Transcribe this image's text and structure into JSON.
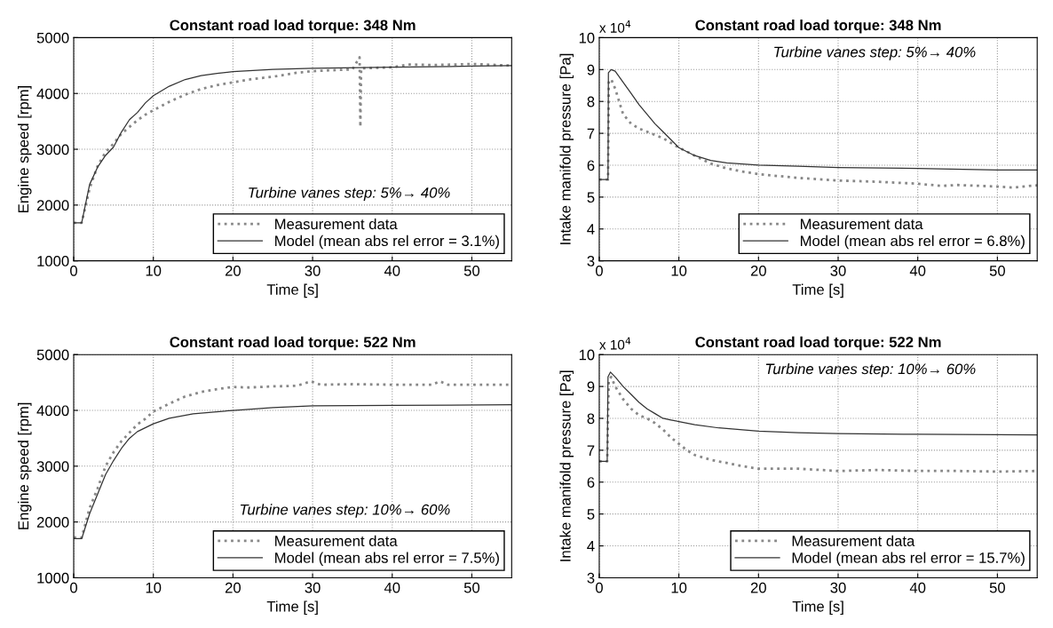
{
  "chart_data": [
    {
      "type": "line",
      "title": "Constant road load torque: 348 Nm",
      "xlabel": "Time [s]",
      "ylabel": "Engine speed [rpm]",
      "xlim": [
        0,
        55
      ],
      "xticks": [
        0,
        10,
        20,
        30,
        40,
        50
      ],
      "ylim": [
        1000,
        5000
      ],
      "yticks": [
        1000,
        2000,
        3000,
        4000,
        5000
      ],
      "grid": true,
      "legend": "bottom right",
      "annotations": [
        "Turbine vanes step: 5%→ 40%"
      ],
      "series": [
        {
          "name": "Measurement data",
          "color": "#888888",
          "line_style": "dotted",
          "x": [
            0,
            1,
            2,
            3,
            4,
            5,
            6,
            7,
            8,
            9,
            10,
            12,
            14,
            16,
            18,
            20,
            22,
            25,
            28,
            30,
            33,
            35,
            35.9,
            36,
            36.1,
            38,
            40,
            42,
            45,
            48,
            50,
            55
          ],
          "values": [
            1680,
            1680,
            2300,
            2700,
            2950,
            3100,
            3280,
            3400,
            3520,
            3620,
            3700,
            3850,
            3980,
            4080,
            4150,
            4200,
            4250,
            4300,
            4370,
            4400,
            4420,
            4430,
            4650,
            3400,
            4450,
            4460,
            4470,
            4520,
            4510,
            4520,
            4530,
            4500
          ]
        },
        {
          "name": "Model (mean abs rel error = 3.1%)",
          "color": "#333333",
          "line_style": "solid",
          "x": [
            0,
            1,
            2,
            3,
            4,
            5,
            6,
            7,
            8,
            9,
            10,
            12,
            14,
            16,
            18,
            20,
            25,
            30,
            40,
            50,
            55
          ],
          "values": [
            1680,
            1680,
            2370,
            2680,
            2890,
            3040,
            3310,
            3530,
            3660,
            3830,
            3960,
            4130,
            4250,
            4320,
            4360,
            4390,
            4430,
            4450,
            4470,
            4490,
            4500
          ]
        }
      ]
    },
    {
      "type": "line",
      "title": "Constant road load torque: 348 Nm",
      "xlabel": "Time [s]",
      "ylabel": "Intake manifold pressure [Pa]",
      "xlim": [
        0,
        55
      ],
      "xticks": [
        0,
        10,
        20,
        30,
        40,
        50
      ],
      "ylim": [
        3,
        10
      ],
      "yticks": [
        3,
        4,
        5,
        6,
        7,
        8,
        9,
        10
      ],
      "grid": true,
      "legend": "bottom right",
      "annotations": [
        "Turbine vanes step: 5%→ 40%",
        "x 10$^{4}$"
      ],
      "series": [
        {
          "name": "Measurement data",
          "color": "#888888",
          "line_style": "dotted",
          "x": [
            0,
            1.1,
            1.2,
            1.5,
            2,
            2.5,
            3,
            4,
            5,
            6,
            7,
            8,
            9,
            10,
            12,
            14,
            16,
            18,
            20,
            25,
            30,
            35,
            40,
            43,
            45,
            50,
            52,
            55
          ],
          "values": [
            5.55,
            5.55,
            8.6,
            8.7,
            8.4,
            8.0,
            7.6,
            7.3,
            7.15,
            7.05,
            6.95,
            6.85,
            6.7,
            6.55,
            6.3,
            6.05,
            5.9,
            5.8,
            5.72,
            5.6,
            5.52,
            5.48,
            5.42,
            5.35,
            5.38,
            5.33,
            5.3,
            5.37
          ]
        },
        {
          "name": "Model (mean abs rel error = 6.8%)",
          "color": "#333333",
          "line_style": "solid",
          "x": [
            0,
            1.1,
            1.15,
            1.5,
            2,
            3,
            4,
            5,
            6,
            7,
            8,
            9,
            10,
            12,
            14,
            16,
            20,
            25,
            30,
            40,
            50,
            55
          ],
          "values": [
            5.55,
            5.55,
            8.9,
            9.0,
            8.95,
            8.6,
            8.25,
            7.9,
            7.6,
            7.3,
            7.05,
            6.8,
            6.55,
            6.3,
            6.15,
            6.07,
            6.0,
            5.97,
            5.93,
            5.9,
            5.85,
            5.85
          ]
        }
      ]
    },
    {
      "type": "line",
      "title": "Constant road load torque: 522 Nm",
      "xlabel": "Time [s]",
      "ylabel": "Engine speed [rpm]",
      "xlim": [
        0,
        55
      ],
      "xticks": [
        0,
        10,
        20,
        30,
        40,
        50
      ],
      "ylim": [
        1000,
        5000
      ],
      "yticks": [
        1000,
        2000,
        3000,
        4000,
        5000
      ],
      "grid": true,
      "legend": "bottom right",
      "annotations": [
        "Turbine vanes step: 10%→ 60%"
      ],
      "series": [
        {
          "name": "Measurement data",
          "color": "#888888",
          "line_style": "dotted",
          "x": [
            0,
            1,
            2,
            3,
            4,
            5,
            6,
            7,
            8,
            9,
            10,
            12,
            14,
            16,
            18,
            20,
            22,
            25,
            28,
            29.8,
            31,
            35,
            40,
            45,
            46,
            47,
            55
          ],
          "values": [
            1720,
            1720,
            2250,
            2600,
            3000,
            3250,
            3450,
            3600,
            3750,
            3850,
            3980,
            4120,
            4250,
            4330,
            4380,
            4420,
            4410,
            4430,
            4440,
            4520,
            4460,
            4470,
            4460,
            4460,
            4520,
            4460,
            4460
          ]
        },
        {
          "name": "Model (mean abs rel error = 7.5%)",
          "color": "#333333",
          "line_style": "solid",
          "x": [
            0,
            1,
            2,
            3,
            4,
            5,
            6,
            7,
            8,
            10,
            12,
            15,
            20,
            25,
            30,
            40,
            55
          ],
          "values": [
            1700,
            1700,
            2150,
            2500,
            2850,
            3100,
            3320,
            3500,
            3620,
            3760,
            3860,
            3940,
            4000,
            4050,
            4080,
            4090,
            4100
          ]
        }
      ]
    },
    {
      "type": "line",
      "title": "Constant road load torque: 522 Nm",
      "xlabel": "Time [s]",
      "ylabel": "Intake manifold pressure [Pa]",
      "xlim": [
        0,
        55
      ],
      "xticks": [
        0,
        10,
        20,
        30,
        40,
        50
      ],
      "ylim": [
        3,
        10
      ],
      "yticks": [
        3,
        4,
        5,
        6,
        7,
        8,
        9,
        10
      ],
      "grid": true,
      "legend": "bottom right",
      "annotations": [
        "Turbine vanes step: 10%→ 60%",
        "x 10$^{4}$"
      ],
      "series": [
        {
          "name": "Measurement data",
          "color": "#888888",
          "line_style": "dotted",
          "x": [
            0,
            1,
            1.2,
            1.5,
            2,
            3,
            4,
            5,
            6,
            7,
            8,
            9,
            10,
            11,
            12,
            14,
            16,
            18,
            20,
            25,
            30,
            35,
            40,
            45,
            50,
            55
          ],
          "values": [
            6.65,
            6.65,
            9.2,
            9.3,
            9.0,
            8.6,
            8.3,
            8.1,
            8.0,
            7.85,
            7.65,
            7.4,
            7.2,
            7.0,
            6.85,
            6.7,
            6.6,
            6.5,
            6.42,
            6.42,
            6.35,
            6.38,
            6.35,
            6.35,
            6.33,
            6.35
          ]
        },
        {
          "name": "Model (mean abs rel error = 15.7%)",
          "color": "#333333",
          "line_style": "solid",
          "x": [
            0,
            1,
            1.1,
            1.4,
            2,
            3,
            4,
            5,
            6,
            7,
            8,
            9,
            10,
            12,
            15,
            20,
            25,
            30,
            40,
            55
          ],
          "values": [
            6.65,
            6.65,
            9.3,
            9.45,
            9.3,
            9.0,
            8.75,
            8.5,
            8.3,
            8.15,
            8.0,
            7.95,
            7.9,
            7.8,
            7.7,
            7.6,
            7.55,
            7.52,
            7.5,
            7.48
          ]
        }
      ]
    }
  ]
}
